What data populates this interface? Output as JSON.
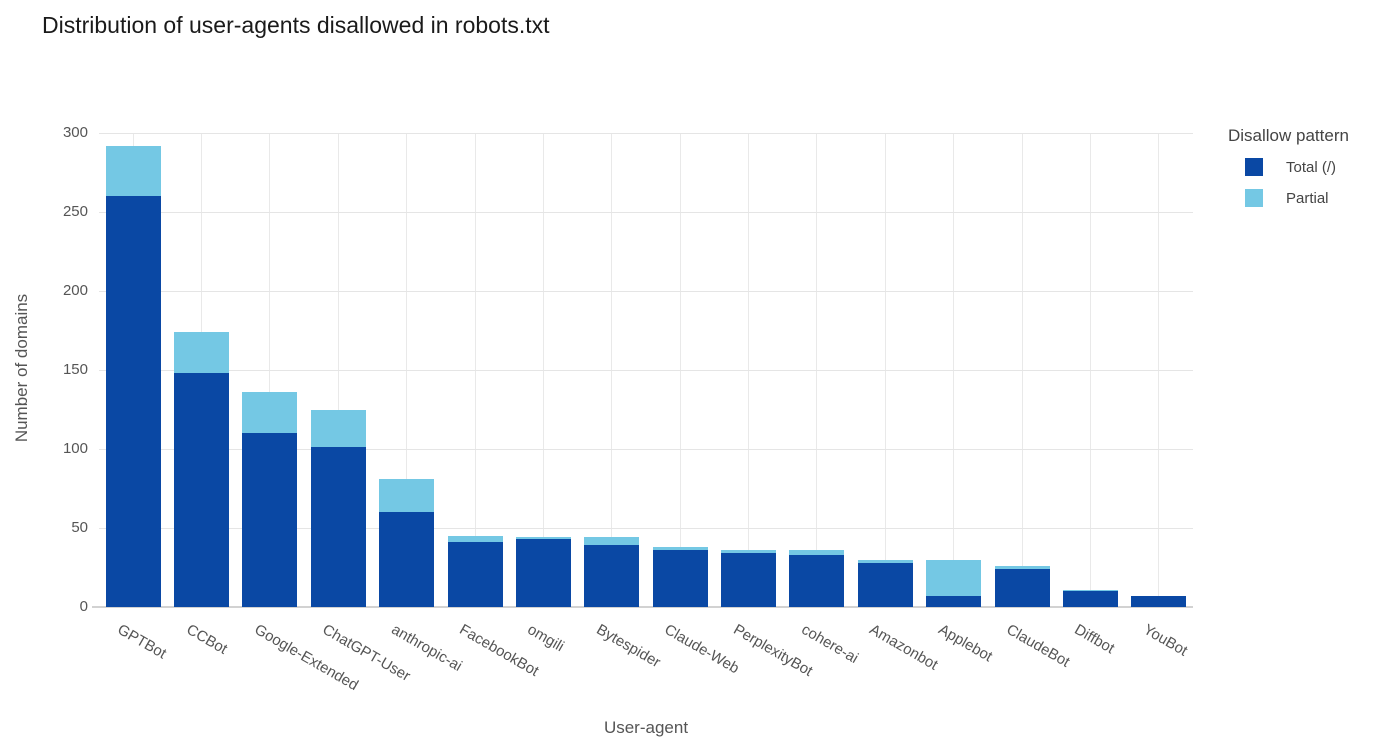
{
  "page": {
    "title": "Distribution of user-agents disallowed in robots.txt"
  },
  "chart_data": {
    "type": "bar",
    "stacked": true,
    "title": "Distribution of user-agents disallowed in robots.txt",
    "xlabel": "User-agent",
    "ylabel": "Number of domains",
    "ylim": [
      0,
      300
    ],
    "yticks": [
      0,
      50,
      100,
      150,
      200,
      250,
      300
    ],
    "grid": true,
    "legend_title": "Disallow pattern",
    "legend_position": "top-right",
    "categories": [
      "GPTBot",
      "CCBot",
      "Google-Extended",
      "ChatGPT-User",
      "anthropic-ai",
      "FacebookBot",
      "omgili",
      "Bytespider",
      "Claude-Web",
      "PerplexityBot",
      "cohere-ai",
      "Amazonbot",
      "Applebot",
      "ClaudeBot",
      "Diffbot",
      "YouBot"
    ],
    "series": [
      {
        "name": "Total (/)",
        "color": "#0a48a4",
        "values": [
          260,
          148,
          110,
          101,
          60,
          41,
          43,
          39,
          36,
          34,
          33,
          28,
          7,
          24,
          10,
          7
        ]
      },
      {
        "name": "Partial",
        "color": "#74c8e4",
        "values": [
          32,
          26,
          26,
          24,
          21,
          4,
          1,
          5,
          2,
          2,
          3,
          2,
          23,
          2,
          1,
          0
        ]
      }
    ],
    "stack_totals": [
      292,
      174,
      136,
      125,
      81,
      45,
      44,
      44,
      38,
      36,
      36,
      30,
      30,
      26,
      11,
      7
    ],
    "colors": {
      "grid": "#e5e5e5",
      "zero_line": "#d2d2d2",
      "tick_text": "#555555",
      "title_text": "#1a1a1a"
    }
  }
}
